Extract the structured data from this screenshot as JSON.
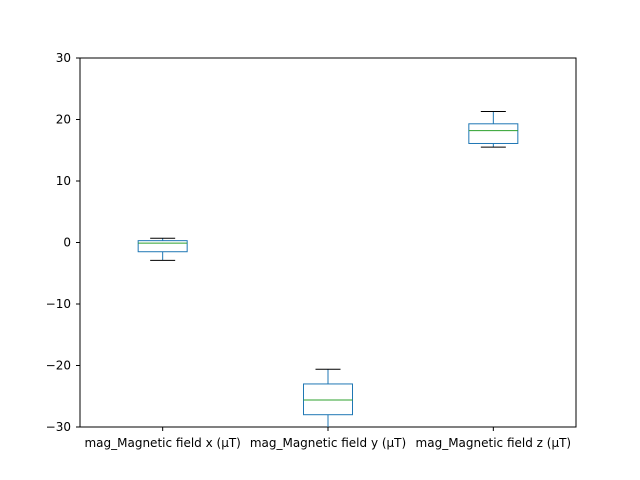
{
  "chart_data": {
    "type": "box",
    "categories": [
      "mag_Magnetic field x (µT)",
      "mag_Magnetic field y (µT)",
      "mag_Magnetic field z (µT)"
    ],
    "boxes": [
      {
        "whisker_low": -2.9,
        "q1": -1.5,
        "median": -0.1,
        "q3": 0.3,
        "whisker_high": 0.7
      },
      {
        "whisker_low": -30.0,
        "q1": -28.0,
        "median": -25.6,
        "q3": -23.0,
        "whisker_high": -20.6
      },
      {
        "whisker_low": 15.5,
        "q1": 16.1,
        "median": 18.2,
        "q3": 19.3,
        "whisker_high": 21.3
      }
    ],
    "y_ticks": [
      -30,
      -20,
      -10,
      0,
      10,
      20,
      30
    ],
    "y_tick_labels": [
      "−30",
      "−20",
      "−10",
      "0",
      "10",
      "20",
      "30"
    ],
    "ylim": [
      -30,
      30
    ],
    "grid": false,
    "colors": {
      "box": "#1f77b4",
      "median": "#2ca02c",
      "cap": "#000000",
      "axes": "#000000"
    }
  }
}
